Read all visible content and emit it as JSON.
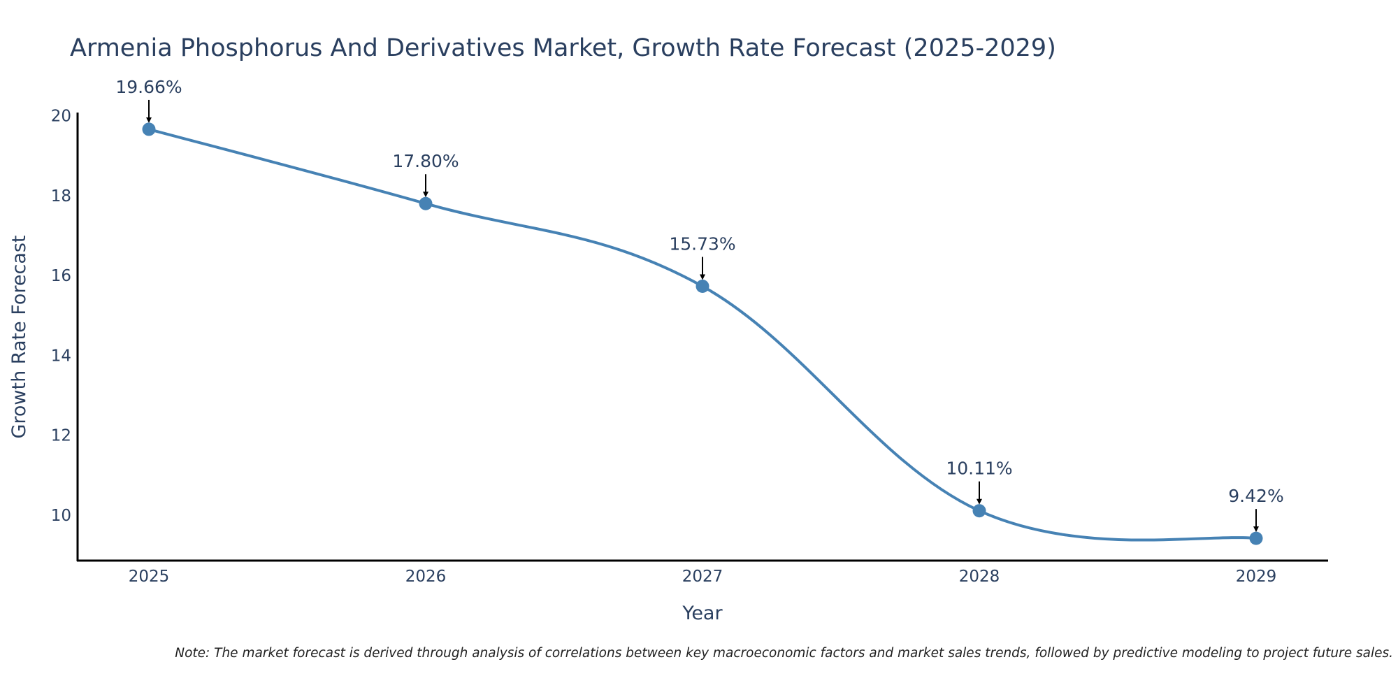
{
  "chart_data": {
    "type": "line",
    "title": "Armenia Phosphorus And Derivatives Market, Growth Rate Forecast (2025-2029)",
    "xlabel": "Year",
    "ylabel": "Growth Rate Forecast",
    "x": [
      "2025",
      "2026",
      "2027",
      "2028",
      "2029"
    ],
    "series": [
      {
        "name": "Growth Rate Forecast",
        "values": [
          19.66,
          17.8,
          15.73,
          10.11,
          9.42
        ],
        "labels": [
          "19.66%",
          "17.80%",
          "15.73%",
          "10.11%",
          "9.42%"
        ],
        "color": "#4682b4"
      }
    ],
    "yticks": [
      10,
      12,
      14,
      16,
      18,
      20
    ],
    "ylim": [
      8.9,
      20.1
    ],
    "grid": false,
    "note": "Note: The market forecast is derived through analysis of correlations between key macroeconomic factors and market sales trends, followed by predictive modeling to project future sales."
  }
}
